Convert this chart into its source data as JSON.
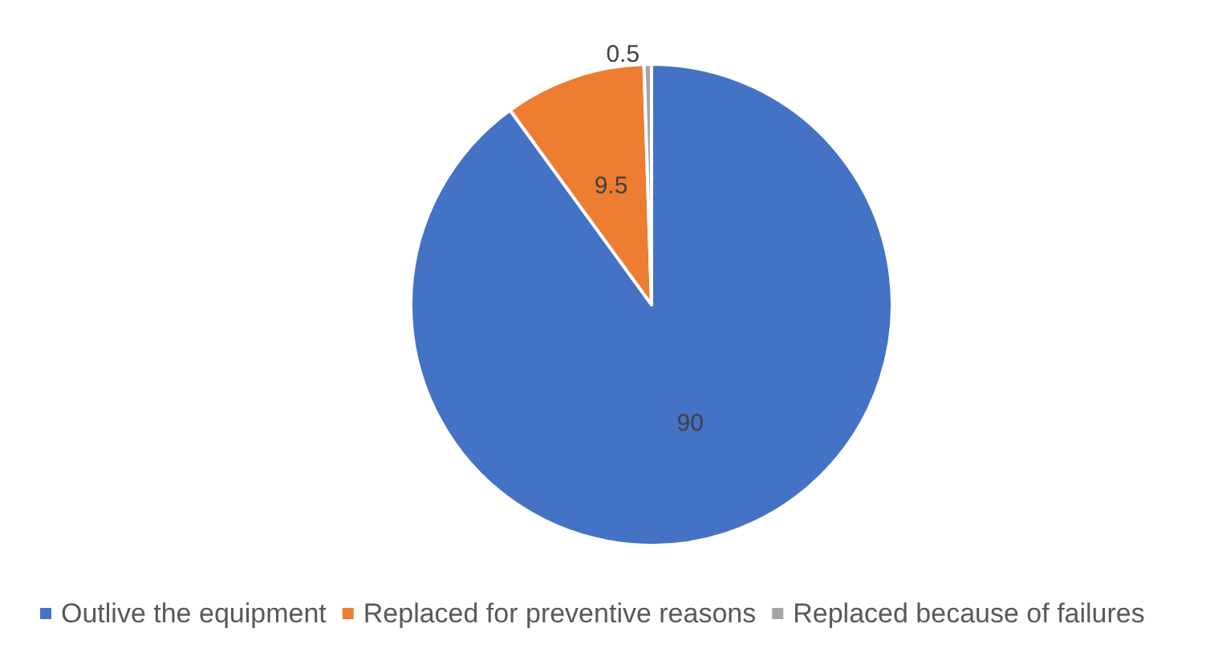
{
  "chart_data": {
    "type": "pie",
    "categories": [
      "Outlive the equipment",
      "Replaced for preventive reasons",
      "Replaced because of failures"
    ],
    "values": [
      90,
      9.5,
      0.5
    ],
    "colors": [
      "#4472c4",
      "#ed7d31",
      "#a5a5a5"
    ],
    "data_labels": true,
    "legend": "bottom"
  }
}
